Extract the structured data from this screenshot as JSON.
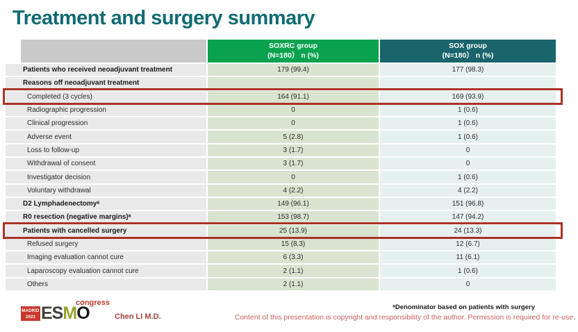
{
  "slide": {
    "title": "Treatment and surgery summary"
  },
  "colors": {
    "title": "#116b72",
    "header_green": "#0ba24f",
    "header_teal": "#1a646c",
    "cell_gray_header": "#c9c9c9",
    "cell_gray": "#e9e9e9",
    "cell_green": "#d8e4cf",
    "cell_teal_light": "#e6f0ee",
    "highlight_red": "#a93226"
  },
  "table": {
    "header": {
      "soxrc": {
        "line1": "SOXRC group",
        "line2": "(N=180） n (%)"
      },
      "sox": {
        "line1": "SOX group",
        "line2": "(N=180） n (%)"
      }
    },
    "rows": [
      {
        "label": "Patients who received neoadjuvant treatment",
        "bold": true,
        "indent": false,
        "soxrc": "179 (99.4)",
        "sox": "177 (98.3)",
        "highlight": false
      },
      {
        "label": "Reasons off neoadjuvant treatment",
        "bold": true,
        "indent": false,
        "soxrc": "",
        "sox": "",
        "highlight": false
      },
      {
        "label": "Completed (3 cycles)",
        "bold": false,
        "indent": true,
        "soxrc": "164 (91.1)",
        "sox": "169 (93.9)",
        "highlight": true
      },
      {
        "label": "Radiographic progression",
        "bold": false,
        "indent": true,
        "soxrc": "0",
        "sox": "1 (0.6)",
        "highlight": false
      },
      {
        "label": "Clinical progression",
        "bold": false,
        "indent": true,
        "soxrc": "0",
        "sox": "1 (0.6)",
        "highlight": false
      },
      {
        "label": "Adverse event",
        "bold": false,
        "indent": true,
        "soxrc": "5 (2.8)",
        "sox": "1 (0.6)",
        "highlight": false
      },
      {
        "label": "Loss to follow-up",
        "bold": false,
        "indent": true,
        "soxrc": "3 (1.7)",
        "sox": "0",
        "highlight": false
      },
      {
        "label": "Withdrawal of consent",
        "bold": false,
        "indent": true,
        "soxrc": "3 (1.7)",
        "sox": "0",
        "highlight": false
      },
      {
        "label": "Investigator decision",
        "bold": false,
        "indent": true,
        "soxrc": "0",
        "sox": "1 (0.6)",
        "highlight": false
      },
      {
        "label": "Voluntary withdrawal",
        "bold": false,
        "indent": true,
        "soxrc": "4 (2.2)",
        "sox": "4 (2.2)",
        "highlight": false
      },
      {
        "label": "D2 Lymphadenectomyᵃ",
        "bold": true,
        "indent": false,
        "soxrc": "149 (96.1)",
        "sox": "151 (96.8)",
        "highlight": false
      },
      {
        "label": "R0 resection (negative margins)ᵃ",
        "bold": true,
        "indent": false,
        "soxrc": "153 (98.7)",
        "sox": "147 (94.2)",
        "highlight": false
      },
      {
        "label": "Patients with cancelled surgery",
        "bold": true,
        "indent": false,
        "soxrc": "25 (13.9)",
        "sox": "24 (13.3)",
        "highlight": true
      },
      {
        "label": "Refused surgery",
        "bold": false,
        "indent": true,
        "soxrc": "15 (8.3)",
        "sox": "12 (6.7)",
        "highlight": false
      },
      {
        "label": "Imaging evaluation cannot cure",
        "bold": false,
        "indent": true,
        "soxrc": "6 (3.3)",
        "sox": "11 (6.1)",
        "highlight": false
      },
      {
        "label": "Laparoscopy evaluation cannot cure",
        "bold": false,
        "indent": true,
        "soxrc": "2 (1.1)",
        "sox": "1 (0.6)",
        "highlight": false
      },
      {
        "label": "Others",
        "bold": false,
        "indent": true,
        "soxrc": "2 (1.1)",
        "sox": "0",
        "highlight": false
      }
    ]
  },
  "footer": {
    "logo": {
      "madrid": "MADRID",
      "year": "2023",
      "esmo_es": "ES",
      "esmo_m": "M",
      "esmo_o": "O",
      "congress": "congress"
    },
    "presenter": "Chen LI M.D.",
    "footnote": "ᵃDenominator based on patients with surgery",
    "copyright": "Content of this presentation is copyright and responsibility of the author. Permission is required for re-use."
  }
}
